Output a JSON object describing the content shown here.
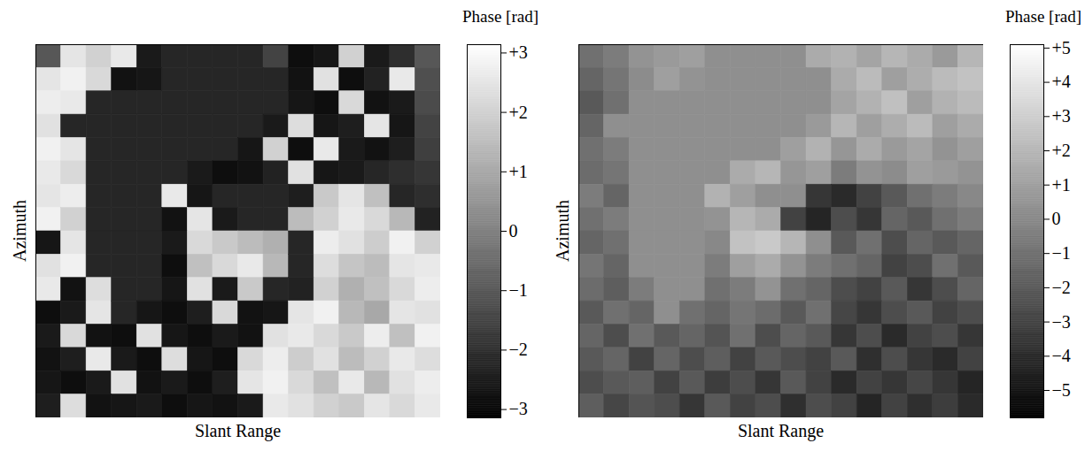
{
  "chart_data": [
    {
      "type": "heatmap",
      "xlabel": "Slant Range",
      "ylabel": "Azimuth",
      "tick_labels": false,
      "color": "gray",
      "colorbar_label": "Phase [rad]",
      "colorbar_range": [
        -3.14,
        3.14
      ],
      "colorbar_ticks": [
        {
          "value": 3,
          "label": "+3"
        },
        {
          "value": 2,
          "label": "+2"
        },
        {
          "value": 1,
          "label": "+1"
        },
        0,
        {
          "value": -1,
          "label": "−1"
        },
        {
          "value": -2,
          "label": "−2"
        },
        {
          "value": -3,
          "label": "−3"
        }
      ],
      "cells": [
        [
          -1,
          2.5,
          2.0,
          2.6,
          -2.5,
          -2.2,
          -2.2,
          -2.2,
          -2.2,
          -1.5,
          -2.8,
          -2.6,
          2.0,
          -2.5,
          -2.0,
          -1.0
        ],
        [
          2.5,
          2.8,
          2.2,
          -2.7,
          -2.6,
          -2.2,
          -2.2,
          -2.2,
          -2.2,
          -2.2,
          -2.7,
          2.4,
          -2.8,
          -2.3,
          2.6,
          -1.2
        ],
        [
          2.7,
          2.6,
          -2.2,
          -2.2,
          -2.2,
          -2.2,
          -2.2,
          -2.2,
          -2.2,
          -2.2,
          -2.6,
          -2.8,
          2.2,
          -2.7,
          -2.5,
          -1.3
        ],
        [
          2.4,
          -2.2,
          -2.2,
          -2.2,
          -2.2,
          -2.2,
          -2.2,
          -2.2,
          -2.2,
          -2.5,
          2.3,
          -2.6,
          -2.4,
          2.5,
          -2.6,
          -1.5
        ],
        [
          2.8,
          2.5,
          -2.2,
          -2.2,
          -2.2,
          -2.2,
          -2.2,
          -2.2,
          -2.6,
          2.0,
          -2.8,
          2.6,
          -2.5,
          -2.7,
          -2.4,
          -1.6
        ],
        [
          2.6,
          2.2,
          -2.2,
          -2.2,
          -2.2,
          -2.2,
          -2.5,
          -2.8,
          -2.7,
          -2.3,
          2.4,
          -2.6,
          -2.5,
          -2.2,
          -2.0,
          -1.8
        ],
        [
          2.5,
          2.7,
          -2.2,
          -2.2,
          -2.2,
          2.6,
          -2.6,
          -2.2,
          -2.2,
          -2.2,
          -2.4,
          1.8,
          2.5,
          1.6,
          -2.2,
          -2.0
        ],
        [
          2.8,
          2.0,
          -2.2,
          -2.2,
          -2.2,
          -2.7,
          2.5,
          -2.5,
          -2.2,
          -2.2,
          1.5,
          2.0,
          2.6,
          2.2,
          1.4,
          -2.3
        ],
        [
          -2.6,
          2.5,
          -2.2,
          -2.2,
          -2.2,
          -2.5,
          2.2,
          1.8,
          1.5,
          1.2,
          -2.2,
          2.7,
          2.4,
          1.9,
          2.8,
          2.0
        ],
        [
          2.4,
          2.8,
          -2.2,
          -2.2,
          -2.2,
          -2.8,
          1.6,
          2.2,
          2.6,
          1.4,
          -2.2,
          2.3,
          1.7,
          1.5,
          2.5,
          2.6
        ],
        [
          2.6,
          -2.7,
          2.3,
          -2.2,
          -2.2,
          -2.6,
          2.4,
          -2.5,
          1.8,
          -2.2,
          -2.3,
          2.0,
          1.2,
          1.6,
          2.2,
          2.7
        ],
        [
          -2.8,
          -2.5,
          2.5,
          -2.2,
          -2.6,
          -2.8,
          -2.4,
          2.2,
          -2.7,
          -2.6,
          2.5,
          2.8,
          1.4,
          1.0,
          2.5,
          2.4
        ],
        [
          -2.5,
          2.2,
          -2.7,
          -2.8,
          2.4,
          -2.6,
          -2.8,
          -2.5,
          -2.7,
          2.4,
          2.6,
          2.2,
          1.8,
          2.7,
          1.6,
          2.8
        ],
        [
          -2.7,
          -2.4,
          2.6,
          -2.5,
          -2.8,
          2.3,
          -2.6,
          -2.8,
          2.2,
          2.7,
          1.9,
          2.4,
          1.5,
          2.0,
          2.6,
          2.3
        ],
        [
          -2.6,
          -2.8,
          -2.5,
          2.4,
          -2.7,
          -2.5,
          -2.8,
          -2.4,
          2.5,
          2.8,
          2.2,
          1.6,
          2.6,
          1.4,
          2.4,
          2.7
        ],
        [
          -2.4,
          2.3,
          -2.7,
          -2.6,
          -2.5,
          -2.8,
          -2.6,
          -2.7,
          -2.5,
          2.6,
          2.4,
          2.0,
          1.8,
          2.5,
          2.2,
          2.6
        ]
      ]
    },
    {
      "type": "heatmap",
      "xlabel": "Slant Range",
      "ylabel": "Azimuth",
      "tick_labels": false,
      "color": "gray",
      "colorbar_label": "Phase [rad]",
      "colorbar_range": [
        -5.8,
        5.1
      ],
      "colorbar_ticks": [
        {
          "value": 5,
          "label": "+5"
        },
        {
          "value": 4,
          "label": "+4"
        },
        {
          "value": 3,
          "label": "+3"
        },
        {
          "value": 2,
          "label": "+2"
        },
        {
          "value": 1,
          "label": "+1"
        },
        0,
        {
          "value": -1,
          "label": "−1"
        },
        {
          "value": -2,
          "label": "−2"
        },
        {
          "value": -3,
          "label": "−3"
        },
        {
          "value": -4,
          "label": "−4"
        },
        {
          "value": -5,
          "label": "−5"
        }
      ],
      "cells": [
        [
          -1,
          -0.5,
          0.5,
          0.8,
          1.0,
          0.3,
          0.3,
          0.3,
          0.3,
          1.5,
          1.8,
          1.2,
          2.0,
          1.5,
          0.8,
          2.0
        ],
        [
          -1.5,
          -0.8,
          0.2,
          1.0,
          0.5,
          0.3,
          0.3,
          0.3,
          0.3,
          0.3,
          1.5,
          2.2,
          1.0,
          1.6,
          2.2,
          2.5
        ],
        [
          -2.0,
          -1.0,
          0.3,
          0.3,
          0.3,
          0.3,
          0.3,
          0.3,
          0.3,
          0.3,
          1.2,
          1.8,
          2.4,
          1.0,
          1.8,
          2.2
        ],
        [
          -1.5,
          0.3,
          0.3,
          0.3,
          0.3,
          0.3,
          0.3,
          0.3,
          0.3,
          0.8,
          2.0,
          1.0,
          1.6,
          2.2,
          1.0,
          1.5
        ],
        [
          -1.0,
          -0.5,
          0.3,
          0.3,
          0.3,
          0.3,
          0.3,
          0.3,
          1.0,
          1.8,
          0.6,
          1.5,
          0.8,
          1.2,
          0.5,
          1.0
        ],
        [
          -1.2,
          -0.8,
          0.3,
          0.3,
          0.3,
          0.3,
          1.5,
          2.0,
          0.6,
          1.0,
          -0.5,
          0.5,
          0.2,
          1.0,
          0.8,
          0.5
        ],
        [
          -0.5,
          -1.5,
          0.3,
          0.3,
          0.3,
          1.8,
          1.0,
          0.3,
          0.3,
          -3.5,
          -4.0,
          -3.0,
          -2.0,
          -1.0,
          -0.5,
          0.0
        ],
        [
          -1.0,
          -0.5,
          0.3,
          0.3,
          0.3,
          0.5,
          2.0,
          1.5,
          -3.0,
          -4.2,
          -2.5,
          -3.5,
          -1.5,
          -2.0,
          -1.0,
          -0.5
        ],
        [
          -1.5,
          -1.0,
          0.3,
          0.3,
          0.3,
          0.0,
          2.5,
          2.8,
          2.0,
          0.3,
          -2.0,
          -1.0,
          -2.5,
          -1.5,
          -2.0,
          -1.5
        ],
        [
          -0.8,
          -1.5,
          0.3,
          0.3,
          0.3,
          -0.5,
          1.0,
          1.5,
          0.5,
          -0.5,
          -1.0,
          -1.5,
          -3.0,
          -2.5,
          -1.0,
          -2.0
        ],
        [
          -1.2,
          -1.8,
          -0.5,
          0.3,
          0.3,
          -1.0,
          -0.5,
          0.5,
          -1.0,
          -1.5,
          -2.5,
          -3.0,
          -2.0,
          -3.5,
          -2.5,
          -1.5
        ],
        [
          -2.0,
          -1.0,
          -1.5,
          0.3,
          -1.0,
          -1.5,
          -0.8,
          -1.2,
          -2.0,
          -1.0,
          -2.8,
          -3.5,
          -2.5,
          -2.0,
          -3.0,
          -2.5
        ],
        [
          -1.5,
          -2.5,
          -1.0,
          -2.0,
          -1.5,
          -2.2,
          -1.0,
          -2.5,
          -1.5,
          -2.0,
          -3.5,
          -2.5,
          -4.0,
          -3.0,
          -2.5,
          -3.5
        ],
        [
          -2.0,
          -1.5,
          -3.0,
          -1.5,
          -2.5,
          -1.8,
          -3.0,
          -2.0,
          -2.5,
          -3.0,
          -2.0,
          -3.8,
          -2.5,
          -3.5,
          -4.0,
          -3.0
        ],
        [
          -2.5,
          -2.0,
          -1.8,
          -3.0,
          -2.0,
          -3.2,
          -2.5,
          -3.5,
          -2.0,
          -3.0,
          -4.0,
          -3.0,
          -3.5,
          -2.8,
          -3.5,
          -4.2
        ],
        [
          -1.8,
          -2.8,
          -2.2,
          -2.5,
          -3.5,
          -2.0,
          -3.0,
          -2.5,
          -3.8,
          -2.5,
          -3.0,
          -4.2,
          -3.0,
          -3.8,
          -3.2,
          -4.0
        ]
      ]
    }
  ]
}
